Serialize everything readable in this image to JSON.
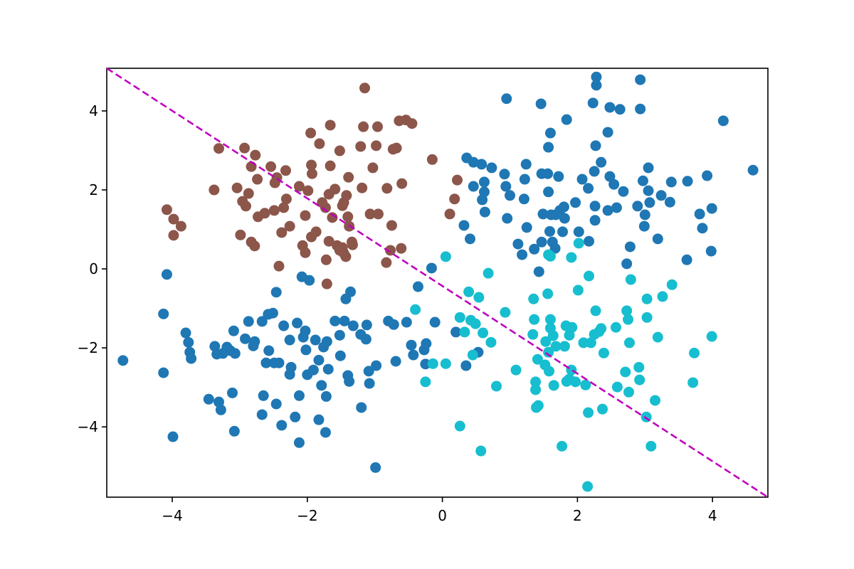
{
  "chart_data": {
    "type": "scatter",
    "xlim": [
      -4.97,
      4.82
    ],
    "ylim": [
      -5.78,
      5.08
    ],
    "xticks": [
      {
        "value": -4,
        "label": "−4"
      },
      {
        "value": -2,
        "label": "−2"
      },
      0,
      2,
      4
    ],
    "yticks": [
      {
        "value": -4,
        "label": "−4"
      },
      {
        "value": -2,
        "label": "−2"
      },
      0,
      2,
      4
    ],
    "grid": false,
    "series": [
      {
        "color": "#8c564b",
        "x": [
          -4.08,
          -3.98,
          -3.87,
          -3.98,
          -3.38,
          -3.31,
          -3.04,
          -2.93,
          -2.77,
          -2.83,
          -2.96,
          -2.87,
          -2.91,
          -2.99,
          -2.83,
          -2.78,
          -2.63,
          -2.73,
          -2.49,
          -2.54,
          -2.45,
          -2.48,
          -2.32,
          -2.31,
          -2.35,
          -2.42,
          -2.38,
          -2.26,
          -2.03,
          -2.07,
          -2.03,
          -1.94,
          -1.87,
          -2.12,
          -1.99,
          -1.93,
          -1.94,
          -1.82,
          -1.95,
          -1.66,
          -1.73,
          -1.63,
          -1.68,
          -1.78,
          -1.66,
          -1.59,
          -1.52,
          -1.46,
          -1.39,
          -1.42,
          -1.48,
          -1.4,
          -1.38,
          -1.33,
          -1.52,
          -1.46,
          -1.34,
          -1.43,
          -1.48,
          -1.68,
          -1.71,
          -1.19,
          -1.21,
          -1.15,
          -1.17,
          -1.07,
          -0.96,
          -0.98,
          -0.95,
          -1.03,
          -0.82,
          -0.75,
          -0.77,
          -0.83,
          -0.73,
          -0.68,
          -0.64,
          -0.6,
          -0.61,
          -0.54,
          -0.45,
          -0.15,
          0.22,
          0.18,
          0.11,
          -1.72,
          -1.56,
          -2.74
        ],
        "values": [
          1.5,
          1.26,
          1.08,
          0.85,
          2.0,
          3.05,
          2.05,
          3.06,
          2.88,
          2.59,
          1.71,
          1.91,
          1.59,
          0.86,
          0.68,
          0.58,
          1.41,
          1.32,
          1.48,
          2.59,
          2.31,
          2.18,
          2.49,
          1.77,
          1.55,
          0.07,
          0.92,
          1.08,
          1.35,
          0.59,
          0.41,
          0.81,
          0.94,
          2.09,
          1.98,
          2.41,
          2.63,
          3.17,
          3.44,
          3.64,
          1.55,
          1.3,
          1.89,
          1.68,
          2.61,
          2.02,
          2.99,
          1.68,
          2.32,
          1.86,
          1.6,
          1.32,
          1.08,
          0.61,
          0.47,
          0.4,
          0.68,
          0.31,
          0.54,
          0.7,
          -0.38,
          2.05,
          3.1,
          4.58,
          3.6,
          1.39,
          3.6,
          3.12,
          1.39,
          2.56,
          2.04,
          1.1,
          0.47,
          0.16,
          3.03,
          3.06,
          3.75,
          2.16,
          0.52,
          3.77,
          3.68,
          2.77,
          2.25,
          1.77,
          1.39,
          0.23,
          0.59,
          2.27
        ]
      },
      {
        "color": "#1f77b4",
        "x": [
          0.95,
          1.46,
          1.84,
          1.6,
          1.57,
          2.28,
          2.28,
          2.23,
          2.48,
          2.63,
          2.45,
          2.27,
          2.93,
          2.93,
          4.16,
          4.6,
          0.36,
          0.46,
          0.58,
          0.73,
          0.92,
          0.46,
          0.62,
          0.62,
          0.59,
          0.63,
          0.32,
          0.41,
          0.94,
          1.0,
          0.96,
          1.24,
          1.22,
          1.21,
          1.25,
          1.12,
          1.18,
          1.36,
          1.47,
          1.56,
          1.72,
          1.57,
          1.49,
          1.61,
          1.68,
          1.74,
          1.8,
          1.59,
          1.78,
          1.47,
          1.63,
          1.43,
          1.81,
          1.97,
          2.02,
          2.17,
          2.07,
          2.16,
          2.25,
          2.35,
          2.48,
          2.54,
          2.26,
          2.26,
          2.45,
          2.58,
          2.68,
          2.89,
          2.97,
          2.99,
          3.0,
          3.05,
          3.05,
          3.07,
          3.24,
          3.39,
          3.37,
          3.19,
          3.63,
          3.62,
          3.81,
          3.85,
          3.92,
          3.99,
          3.98,
          2.73,
          2.78,
          -0.16,
          1.67,
          -4.73,
          -4.13,
          -4.08,
          -4.13,
          -3.99,
          -3.8,
          -3.76,
          -3.74,
          -3.72,
          -3.46,
          -3.31,
          -3.28,
          -3.37,
          -3.34,
          -3.25,
          -3.19,
          -3.14,
          -3.11,
          -3.09,
          -3.07,
          -3.08,
          -2.87,
          -2.92,
          -2.8,
          -2.67,
          -2.78,
          -2.65,
          -2.67,
          -2.61,
          -2.58,
          -2.51,
          -2.57,
          -2.46,
          -2.49,
          -2.46,
          -2.42,
          -2.38,
          -2.35,
          -2.26,
          -2.26,
          -2.24,
          -2.18,
          -2.15,
          -2.12,
          -2.12,
          -2.08,
          -2.02,
          -2.06,
          -2.03,
          -2.0,
          -1.97,
          -1.91,
          -1.88,
          -1.83,
          -1.83,
          -1.79,
          -1.76,
          -1.71,
          -1.69,
          -1.73,
          -1.72,
          -1.59,
          -1.52,
          -1.51,
          -1.45,
          -1.43,
          -1.4,
          -1.38,
          -1.36,
          -1.32,
          -1.21,
          -1.13,
          -1.12,
          -1.09,
          -1.08,
          -1.2,
          -0.98,
          -0.99,
          -0.8,
          -0.69,
          -0.72,
          -0.53,
          -0.46,
          -0.43,
          -0.36,
          -0.27,
          -0.25,
          -0.24,
          -0.11,
          0.2,
          0.35,
          0.53
        ],
        "values": [
          4.31,
          4.18,
          3.78,
          3.44,
          3.08,
          4.86,
          4.65,
          4.2,
          4.09,
          4.04,
          3.46,
          3.12,
          4.79,
          4.05,
          3.75,
          2.5,
          2.81,
          2.7,
          2.65,
          2.56,
          2.4,
          2.09,
          2.2,
          1.95,
          1.75,
          1.44,
          1.1,
          0.76,
          2.09,
          1.86,
          1.28,
          2.65,
          2.27,
          1.77,
          1.05,
          0.63,
          0.36,
          0.5,
          2.41,
          2.41,
          2.34,
          1.95,
          1.39,
          1.37,
          1.37,
          1.48,
          1.57,
          0.95,
          0.94,
          0.68,
          0.68,
          -0.07,
          1.28,
          1.68,
          0.94,
          0.7,
          2.27,
          2.04,
          2.47,
          2.7,
          2.34,
          2.14,
          1.59,
          1.23,
          1.48,
          1.55,
          1.96,
          1.59,
          2.23,
          1.08,
          1.37,
          2.56,
          1.98,
          1.68,
          1.86,
          2.2,
          1.69,
          0.76,
          2.22,
          0.23,
          1.39,
          1.03,
          2.36,
          1.53,
          0.45,
          0.13,
          0.56,
          0.02,
          0.52,
          -2.32,
          -1.14,
          -0.14,
          -2.63,
          -4.25,
          -1.62,
          -1.86,
          -2.11,
          -2.27,
          -3.3,
          -3.37,
          -3.57,
          -1.96,
          -2.16,
          -2.14,
          -1.98,
          -2.07,
          -3.14,
          -1.57,
          -2.14,
          -4.11,
          -1.33,
          -1.77,
          -1.95,
          -1.33,
          -1.84,
          -3.21,
          -3.69,
          -2.38,
          -1.15,
          -1.12,
          -2.07,
          -0.59,
          -2.38,
          -3.42,
          -2.38,
          -3.96,
          -1.44,
          -1.8,
          -2.67,
          -2.49,
          -3.75,
          -1.37,
          -4.4,
          -3.21,
          -0.2,
          -2.05,
          -1.73,
          -1.57,
          -2.68,
          -0.29,
          -2.56,
          -1.8,
          -3.82,
          -2.31,
          -2.95,
          -1.98,
          -1.84,
          -2.54,
          -4.14,
          -3.23,
          -1.32,
          -1.68,
          -2.2,
          -1.32,
          -0.76,
          -2.7,
          -2.85,
          -0.58,
          -1.44,
          -1.66,
          -1.78,
          -1.42,
          -2.59,
          -2.9,
          -3.51,
          -2.45,
          -5.03,
          -1.32,
          -2.34,
          -1.41,
          -1.35,
          -1.93,
          -2.18,
          -0.45,
          -2.05,
          -2.41,
          -1.89,
          -1.35,
          -1.6,
          -2.45,
          -2.11
        ]
      },
      {
        "color": "#17becf",
        "x": [
          0.05,
          -0.4,
          -0.14,
          -0.25,
          0.05,
          0.26,
          0.57,
          0.39,
          0.54,
          0.68,
          0.26,
          0.42,
          0.33,
          0.49,
          0.6,
          0.45,
          0.72,
          0.8,
          0.93,
          1.09,
          1.35,
          1.41,
          1.36,
          1.34,
          1.38,
          1.42,
          1.38,
          1.39,
          1.56,
          1.6,
          1.6,
          1.57,
          1.6,
          1.53,
          1.57,
          1.64,
          1.68,
          1.52,
          1.58,
          1.65,
          1.77,
          1.83,
          1.88,
          1.81,
          1.92,
          1.84,
          1.88,
          1.91,
          1.97,
          2.01,
          2.02,
          1.91,
          2.17,
          2.27,
          2.09,
          2.2,
          2.25,
          2.32,
          2.39,
          2.35,
          2.12,
          2.16,
          2.37,
          2.15,
          2.57,
          2.59,
          2.71,
          2.75,
          2.77,
          2.76,
          2.73,
          2.79,
          2.91,
          2.92,
          3.03,
          3.03,
          3.09,
          3.15,
          3.19,
          3.26,
          3.4,
          3.73,
          3.71,
          3.99,
          3.02
        ],
        "values": [
          0.31,
          -1.03,
          -2.4,
          -2.86,
          -2.4,
          -3.98,
          -4.61,
          -0.58,
          -0.72,
          -0.11,
          -1.23,
          -1.3,
          -1.6,
          -1.39,
          -1.62,
          -2.18,
          -1.86,
          -2.97,
          -1.1,
          -2.56,
          -0.76,
          -2.29,
          -1.28,
          -1.66,
          -2.86,
          -3.46,
          -3.06,
          -3.51,
          -0.63,
          -1.5,
          -1.28,
          0.36,
          0.32,
          -1.84,
          -2.11,
          -1.69,
          -1.96,
          -2.43,
          -2.59,
          -2.95,
          -4.49,
          -1.44,
          -1.68,
          -1.96,
          -1.48,
          -2.85,
          -2.79,
          -2.56,
          -2.86,
          -0.54,
          0.65,
          0.29,
          -0.18,
          -1.06,
          -1.87,
          -1.87,
          -1.66,
          -1.59,
          -2.13,
          -1.51,
          -2.94,
          -3.64,
          -3.55,
          -5.51,
          -1.48,
          -2.99,
          -2.61,
          -1.28,
          -1.87,
          -3.12,
          -1.06,
          -0.27,
          -2.49,
          -2.81,
          -0.76,
          -1.23,
          -4.49,
          -3.33,
          -1.73,
          -0.7,
          -0.4,
          -2.13,
          -2.88,
          -1.71,
          -3.75
        ]
      }
    ],
    "decision_line": {
      "color": "#bf00bf",
      "dashed": true,
      "x": [
        -4.97,
        4.82
      ],
      "values": [
        5.08,
        -5.78
      ]
    }
  }
}
